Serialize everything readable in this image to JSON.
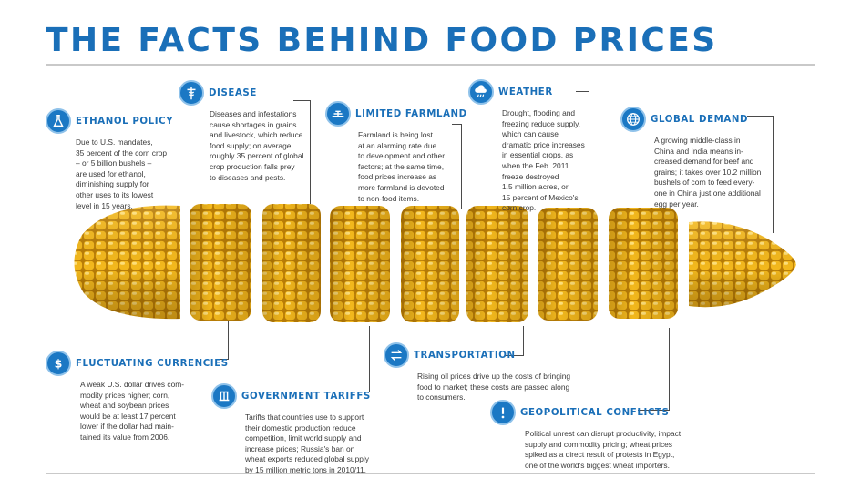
{
  "title": "THE FACTS BEHIND FOOD PRICES",
  "colors": {
    "heading": "#1a6fb8",
    "icon": "#1b78c4",
    "kernel": "#f2b41c",
    "text": "#3b3b3b"
  },
  "sections": {
    "ethanol": {
      "icon": "flask-icon",
      "heading": "ETHANOL POLICY",
      "body": "Due to U.S. mandates,\n35 percent of the corn crop\n– or 5 billion bushels –\nare used for ethanol,\ndiminishing supply for\nother uses to its lowest\nlevel in 15 years."
    },
    "disease": {
      "icon": "caduceus-icon",
      "heading": "DISEASE",
      "body": "Diseases and infestations\ncause shortages in grains\nand livestock, which reduce\nfood supply; on average,\nroughly 35 percent of global\ncrop production falls prey\nto diseases and pests."
    },
    "farmland": {
      "icon": "field-icon",
      "heading": "LIMITED FARMLAND",
      "body": "Farmland is being lost\nat an alarming rate due\nto development and other\nfactors; at the same time,\nfood prices increase as\nmore farmland is devoted\nto non-food items."
    },
    "weather": {
      "icon": "storm-cloud-icon",
      "heading": "WEATHER",
      "body": "Drought, flooding and\nfreezing reduce supply,\nwhich can cause\ndramatic price increases\nin essential crops, as\nwhen the Feb. 2011\nfreeze destroyed\n1.5 million acres, or\n15 percent of Mexico's\ncorn crop."
    },
    "demand": {
      "icon": "globe-icon",
      "heading": "GLOBAL DEMAND",
      "body": "A growing middle-class in\nChina and India means in-\ncreased demand for beef and\ngrains; it takes over 10.2 million\nbushels of corn to feed every-\none in China just one additional\negg per year."
    },
    "currencies": {
      "icon": "dollar-icon",
      "heading": "FLUCTUATING CURRENCIES",
      "body": "A weak U.S. dollar drives com-\nmodity prices higher; corn,\nwheat and soybean prices\nwould be at least 17 percent\nlower if the dollar had main-\ntained its value from 2006."
    },
    "tariffs": {
      "icon": "column-icon",
      "heading": "GOVERNMENT TARIFFS",
      "body": "Tariffs that countries use to support\ntheir domestic production reduce\ncompetition, limit world supply and\nincrease prices; Russia's ban on\nwheat exports reduced global supply\nby 15 million metric tons in 2010/11."
    },
    "transport": {
      "icon": "arrows-icon",
      "heading": "TRANSPORTATION",
      "body": "Rising oil prices drive up the costs of bringing\nfood to market; these costs are passed along\nto consumers."
    },
    "conflicts": {
      "icon": "exclamation-icon",
      "heading": "GEOPOLITICAL CONFLICTS",
      "body": "Political unrest can disrupt productivity, impact\nsupply and commodity pricing; wheat prices\nspiked as a direct result of protests in Egypt,\none of the world's biggest wheat importers."
    }
  }
}
